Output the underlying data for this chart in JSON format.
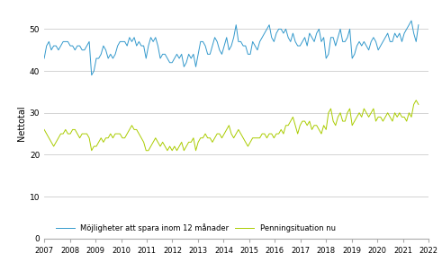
{
  "title": "",
  "ylabel": "Nettotal",
  "ylim": [
    0,
    55
  ],
  "yticks": [
    0,
    10,
    20,
    30,
    40,
    50
  ],
  "xlim": [
    2007.0,
    2022.0
  ],
  "xticks": [
    2007,
    2008,
    2009,
    2010,
    2011,
    2012,
    2013,
    2014,
    2015,
    2016,
    2017,
    2018,
    2019,
    2020,
    2021,
    2022
  ],
  "line1_color": "#3399CC",
  "line2_color": "#AACC00",
  "legend_labels": [
    "Möjligheter att spara inom 12 månader",
    "Penningsituation nu"
  ],
  "background_color": "#ffffff",
  "grid_color": "#cccccc",
  "line1_data": [
    43,
    46,
    47,
    45,
    46,
    46,
    45,
    46,
    47,
    47,
    47,
    46,
    46,
    45,
    46,
    46,
    45,
    45,
    46,
    47,
    39,
    40,
    43,
    43,
    44,
    46,
    45,
    43,
    44,
    43,
    44,
    46,
    47,
    47,
    47,
    46,
    48,
    47,
    48,
    46,
    47,
    46,
    46,
    43,
    46,
    48,
    47,
    48,
    46,
    43,
    44,
    44,
    43,
    42,
    42,
    43,
    44,
    43,
    44,
    41,
    42,
    44,
    43,
    44,
    41,
    44,
    47,
    47,
    46,
    44,
    44,
    46,
    48,
    47,
    45,
    44,
    46,
    48,
    45,
    46,
    48,
    51,
    47,
    47,
    46,
    46,
    44,
    44,
    47,
    46,
    45,
    47,
    48,
    49,
    50,
    51,
    48,
    47,
    49,
    50,
    50,
    49,
    50,
    48,
    47,
    49,
    47,
    46,
    46,
    47,
    48,
    46,
    49,
    48,
    47,
    49,
    50,
    47,
    48,
    43,
    44,
    48,
    48,
    46,
    48,
    50,
    47,
    47,
    48,
    50,
    43,
    44,
    46,
    47,
    46,
    47,
    46,
    45,
    47,
    48,
    47,
    45,
    46,
    47,
    48,
    49,
    47,
    47,
    49,
    48,
    49,
    47,
    49,
    50,
    51,
    52,
    49,
    47,
    51
  ],
  "line2_data": [
    26,
    25,
    24,
    23,
    22,
    23,
    24,
    25,
    25,
    26,
    25,
    25,
    26,
    26,
    25,
    24,
    25,
    25,
    25,
    24,
    21,
    22,
    22,
    23,
    24,
    23,
    24,
    24,
    25,
    24,
    25,
    25,
    25,
    24,
    24,
    25,
    26,
    27,
    26,
    26,
    25,
    24,
    23,
    21,
    21,
    22,
    23,
    24,
    23,
    22,
    23,
    22,
    21,
    22,
    21,
    22,
    21,
    22,
    23,
    21,
    22,
    23,
    23,
    24,
    21,
    23,
    24,
    24,
    25,
    24,
    24,
    23,
    24,
    25,
    25,
    24,
    25,
    26,
    27,
    25,
    24,
    25,
    26,
    25,
    24,
    23,
    22,
    23,
    24,
    24,
    24,
    24,
    25,
    25,
    24,
    25,
    25,
    24,
    25,
    25,
    26,
    25,
    27,
    27,
    28,
    29,
    27,
    25,
    27,
    28,
    28,
    27,
    28,
    26,
    27,
    27,
    26,
    25,
    27,
    26,
    30,
    31,
    28,
    27,
    29,
    30,
    28,
    28,
    30,
    31,
    27,
    28,
    29,
    30,
    29,
    31,
    30,
    29,
    30,
    31,
    28,
    29,
    29,
    28,
    29,
    30,
    29,
    28,
    30,
    29,
    30,
    29,
    29,
    28,
    30,
    29,
    32,
    33,
    32
  ],
  "n_months_line1": 159,
  "n_months_line2": 159,
  "start_year": 2007.0
}
